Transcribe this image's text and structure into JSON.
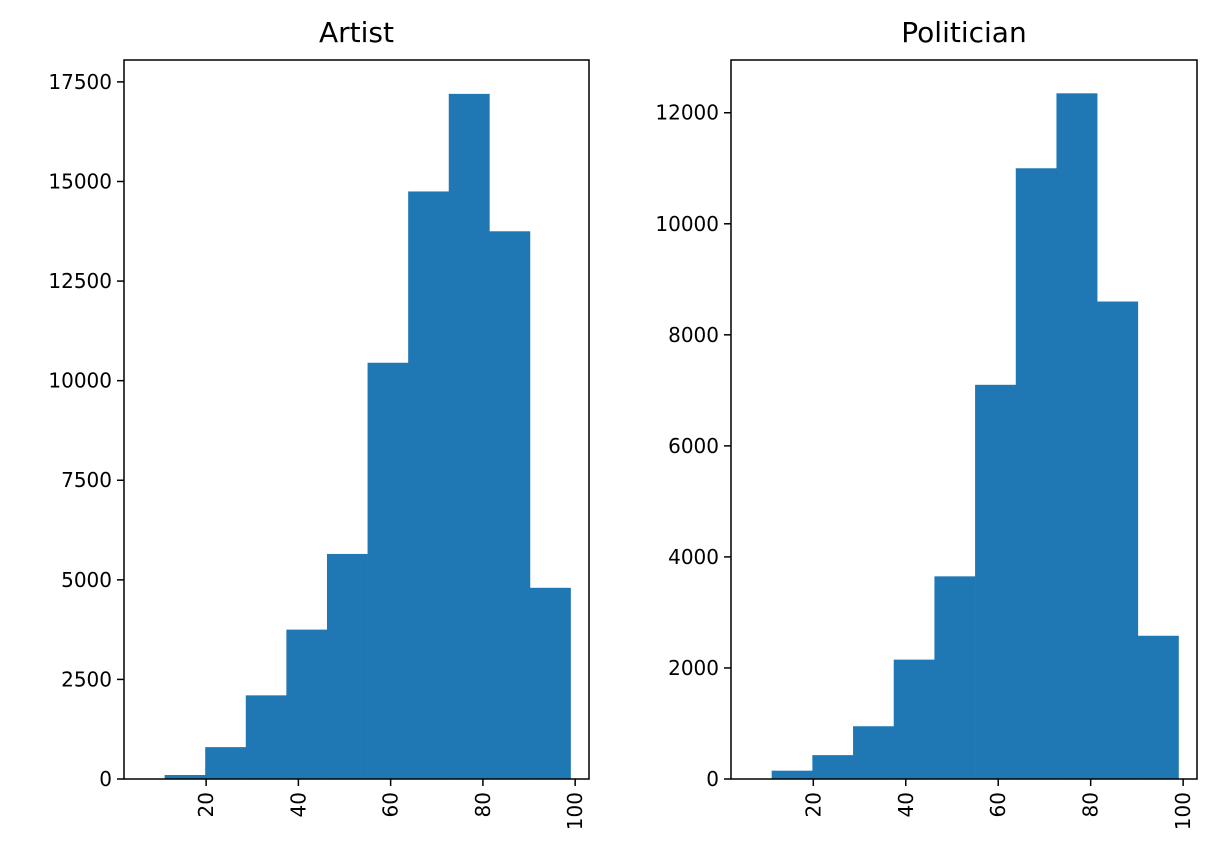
{
  "chart_data": [
    {
      "type": "bar",
      "title": "Artist",
      "xlabel": "",
      "ylabel": "",
      "bin_edges": [
        11.0,
        19.8,
        28.6,
        37.4,
        46.2,
        55.0,
        63.8,
        72.6,
        81.4,
        90.2,
        99.0
      ],
      "values": [
        100,
        800,
        2100,
        3750,
        5650,
        10450,
        14750,
        17200,
        13750,
        4800
      ],
      "xlim": [
        2.2,
        103.0
      ],
      "ylim": [
        0,
        18050
      ],
      "xticks": [
        20,
        40,
        60,
        80,
        100
      ],
      "xtick_labels": [
        "20",
        "40",
        "60",
        "80",
        "100"
      ],
      "yticks": [
        0,
        2500,
        5000,
        7500,
        10000,
        12500,
        15000,
        17500
      ],
      "ytick_labels": [
        "0",
        "2500",
        "5000",
        "7500",
        "10000",
        "12500",
        "15000",
        "17500"
      ],
      "grid": false,
      "color": "#1f77b4"
    },
    {
      "type": "bar",
      "title": "Politician",
      "xlabel": "",
      "ylabel": "",
      "bin_edges": [
        11.0,
        19.8,
        28.6,
        37.4,
        46.2,
        55.0,
        63.8,
        72.6,
        81.4,
        90.2,
        99.0
      ],
      "values": [
        150,
        430,
        950,
        2150,
        3650,
        7100,
        11000,
        12350,
        8600,
        2580
      ],
      "xlim": [
        2.2,
        103.0
      ],
      "ylim": [
        0,
        12950
      ],
      "xticks": [
        20,
        40,
        60,
        80,
        100
      ],
      "xtick_labels": [
        "20",
        "40",
        "60",
        "80",
        "100"
      ],
      "yticks": [
        0,
        2000,
        4000,
        6000,
        8000,
        10000,
        12000
      ],
      "ytick_labels": [
        "0",
        "2000",
        "4000",
        "6000",
        "8000",
        "10000",
        "12000"
      ],
      "grid": false,
      "color": "#1f77b4"
    }
  ]
}
